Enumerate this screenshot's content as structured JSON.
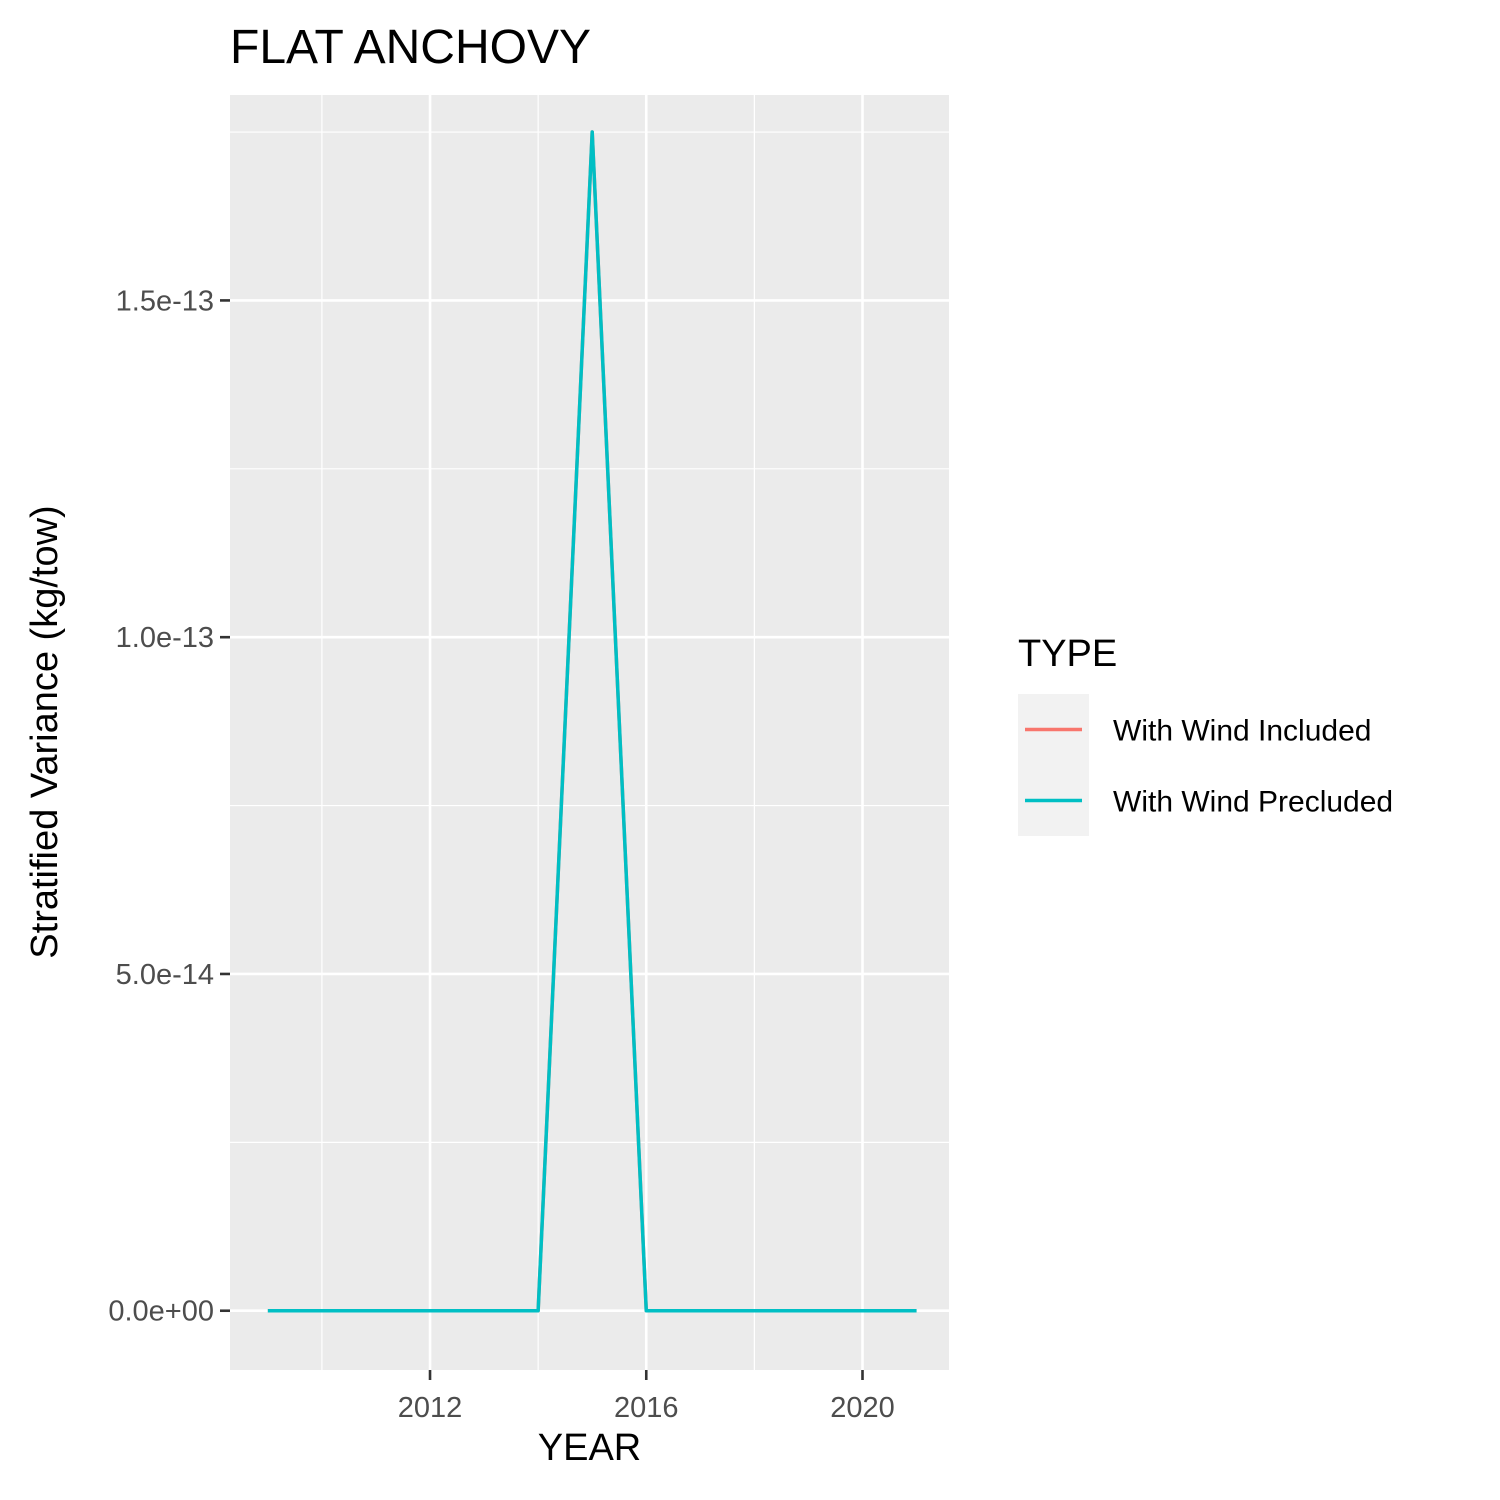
{
  "chart_data": {
    "type": "line",
    "title": "FLAT ANCHOVY",
    "xlabel": "YEAR",
    "ylabel": "Stratified Variance (kg/tow)",
    "x": [
      2009,
      2010,
      2011,
      2012,
      2013,
      2014,
      2015,
      2016,
      2017,
      2018,
      2019,
      2020,
      2021
    ],
    "xlim": [
      2008.3,
      2021.6
    ],
    "ylim": [
      -8.8e-15,
      1.805e-13
    ],
    "x_ticks": [
      2012,
      2016,
      2020
    ],
    "x_tick_labels": [
      "2012",
      "2016",
      "2020"
    ],
    "y_ticks": [
      0,
      5e-14,
      1e-13,
      1.5e-13
    ],
    "y_tick_labels": [
      "0.0e+00",
      "5.0e-14",
      "1.0e-13",
      "1.5e-13"
    ],
    "grid": true,
    "legend": {
      "title": "TYPE",
      "placement": "right"
    },
    "series": [
      {
        "name": "With Wind Included",
        "color": "#F8766D",
        "values": [
          0,
          0,
          0,
          0,
          0,
          0,
          1.75e-13,
          0,
          0,
          0,
          0,
          0,
          0
        ]
      },
      {
        "name": "With Wind Precluded",
        "color": "#00BFC4",
        "values": [
          0,
          0,
          0,
          0,
          0,
          0,
          1.75e-13,
          0,
          0,
          0,
          0,
          0,
          0
        ]
      }
    ]
  }
}
